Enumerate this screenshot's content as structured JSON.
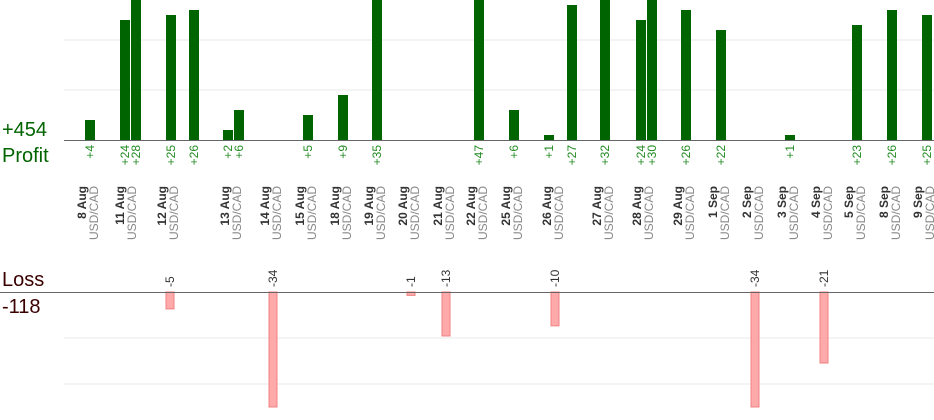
{
  "summary": {
    "profit_total": "+454",
    "profit_label": "Profit",
    "loss_label": "Loss",
    "loss_total": "-118"
  },
  "chart_data": {
    "type": "bar",
    "title": "",
    "xlabel": "",
    "ylabel": "",
    "symbol": "USD/CAD",
    "grid": true,
    "dates": [
      "8 Aug",
      "11 Aug",
      "12 Aug",
      "13 Aug",
      "14 Aug",
      "15 Aug",
      "18 Aug",
      "19 Aug",
      "20 Aug",
      "21 Aug",
      "22 Aug",
      "25 Aug",
      "26 Aug",
      "27 Aug",
      "28 Aug",
      "29 Aug",
      "1 Sep",
      "2 Sep",
      "3 Sep",
      "4 Sep",
      "5 Sep",
      "8 Sep",
      "9 Sep"
    ],
    "profit_series": [
      {
        "date": "8 Aug",
        "value": 4,
        "label": "+4"
      },
      {
        "date": "11 Aug",
        "value": 24,
        "label": "+24"
      },
      {
        "date": "11 Aug",
        "value": 28,
        "label": "+28"
      },
      {
        "date": "12 Aug",
        "value": 25,
        "label": "+25"
      },
      {
        "date": "12 Aug",
        "value": 26,
        "label": "+26"
      },
      {
        "date": "13 Aug",
        "value": 2,
        "label": "+2"
      },
      {
        "date": "13 Aug",
        "value": 6,
        "label": "+6"
      },
      {
        "date": "15 Aug",
        "value": 5,
        "label": "+5"
      },
      {
        "date": "18 Aug",
        "value": 9,
        "label": "+9"
      },
      {
        "date": "19 Aug",
        "value": 35,
        "label": "+35"
      },
      {
        "date": "22 Aug",
        "value": 47,
        "label": "+47"
      },
      {
        "date": "25 Aug",
        "value": 6,
        "label": "+6"
      },
      {
        "date": "26 Aug",
        "value": 1,
        "label": "+1"
      },
      {
        "date": "26 Aug",
        "value": 27,
        "label": "+27"
      },
      {
        "date": "27 Aug",
        "value": 32,
        "label": "+32"
      },
      {
        "date": "28 Aug",
        "value": 24,
        "label": "+24"
      },
      {
        "date": "28 Aug",
        "value": 30,
        "label": "+30"
      },
      {
        "date": "29 Aug",
        "value": 26,
        "label": "+26"
      },
      {
        "date": "1 Sep",
        "value": 22,
        "label": "+22"
      },
      {
        "date": "3 Sep",
        "value": 1,
        "label": "+1"
      },
      {
        "date": "5 Sep",
        "value": 23,
        "label": "+23"
      },
      {
        "date": "8 Sep",
        "value": 26,
        "label": "+26"
      },
      {
        "date": "9 Sep",
        "value": 25,
        "label": "+25"
      }
    ],
    "loss_series": [
      {
        "date": "12 Aug",
        "value": -5,
        "label": "-5"
      },
      {
        "date": "14 Aug",
        "value": -34,
        "label": "-34"
      },
      {
        "date": "20 Aug",
        "value": -1,
        "label": "-1"
      },
      {
        "date": "21 Aug",
        "value": -13,
        "label": "-13"
      },
      {
        "date": "26 Aug",
        "value": -10,
        "label": "-10"
      },
      {
        "date": "2 Sep",
        "value": -34,
        "label": "-34"
      },
      {
        "date": "4 Sep",
        "value": -21,
        "label": "-21"
      }
    ],
    "profit_ylim": [
      0,
      28
    ],
    "loss_ylim": [
      -34,
      0
    ],
    "colors": {
      "profit_bar": "#006400",
      "profit_label": "#228b22",
      "loss_bar": "#ffaaaa",
      "loss_bar_edge": "#f08080",
      "loss_label": "#333333",
      "date_label": "#333333",
      "symbol_label": "#888888",
      "grid": "#e8e8e8",
      "baseline": "#666666"
    }
  }
}
